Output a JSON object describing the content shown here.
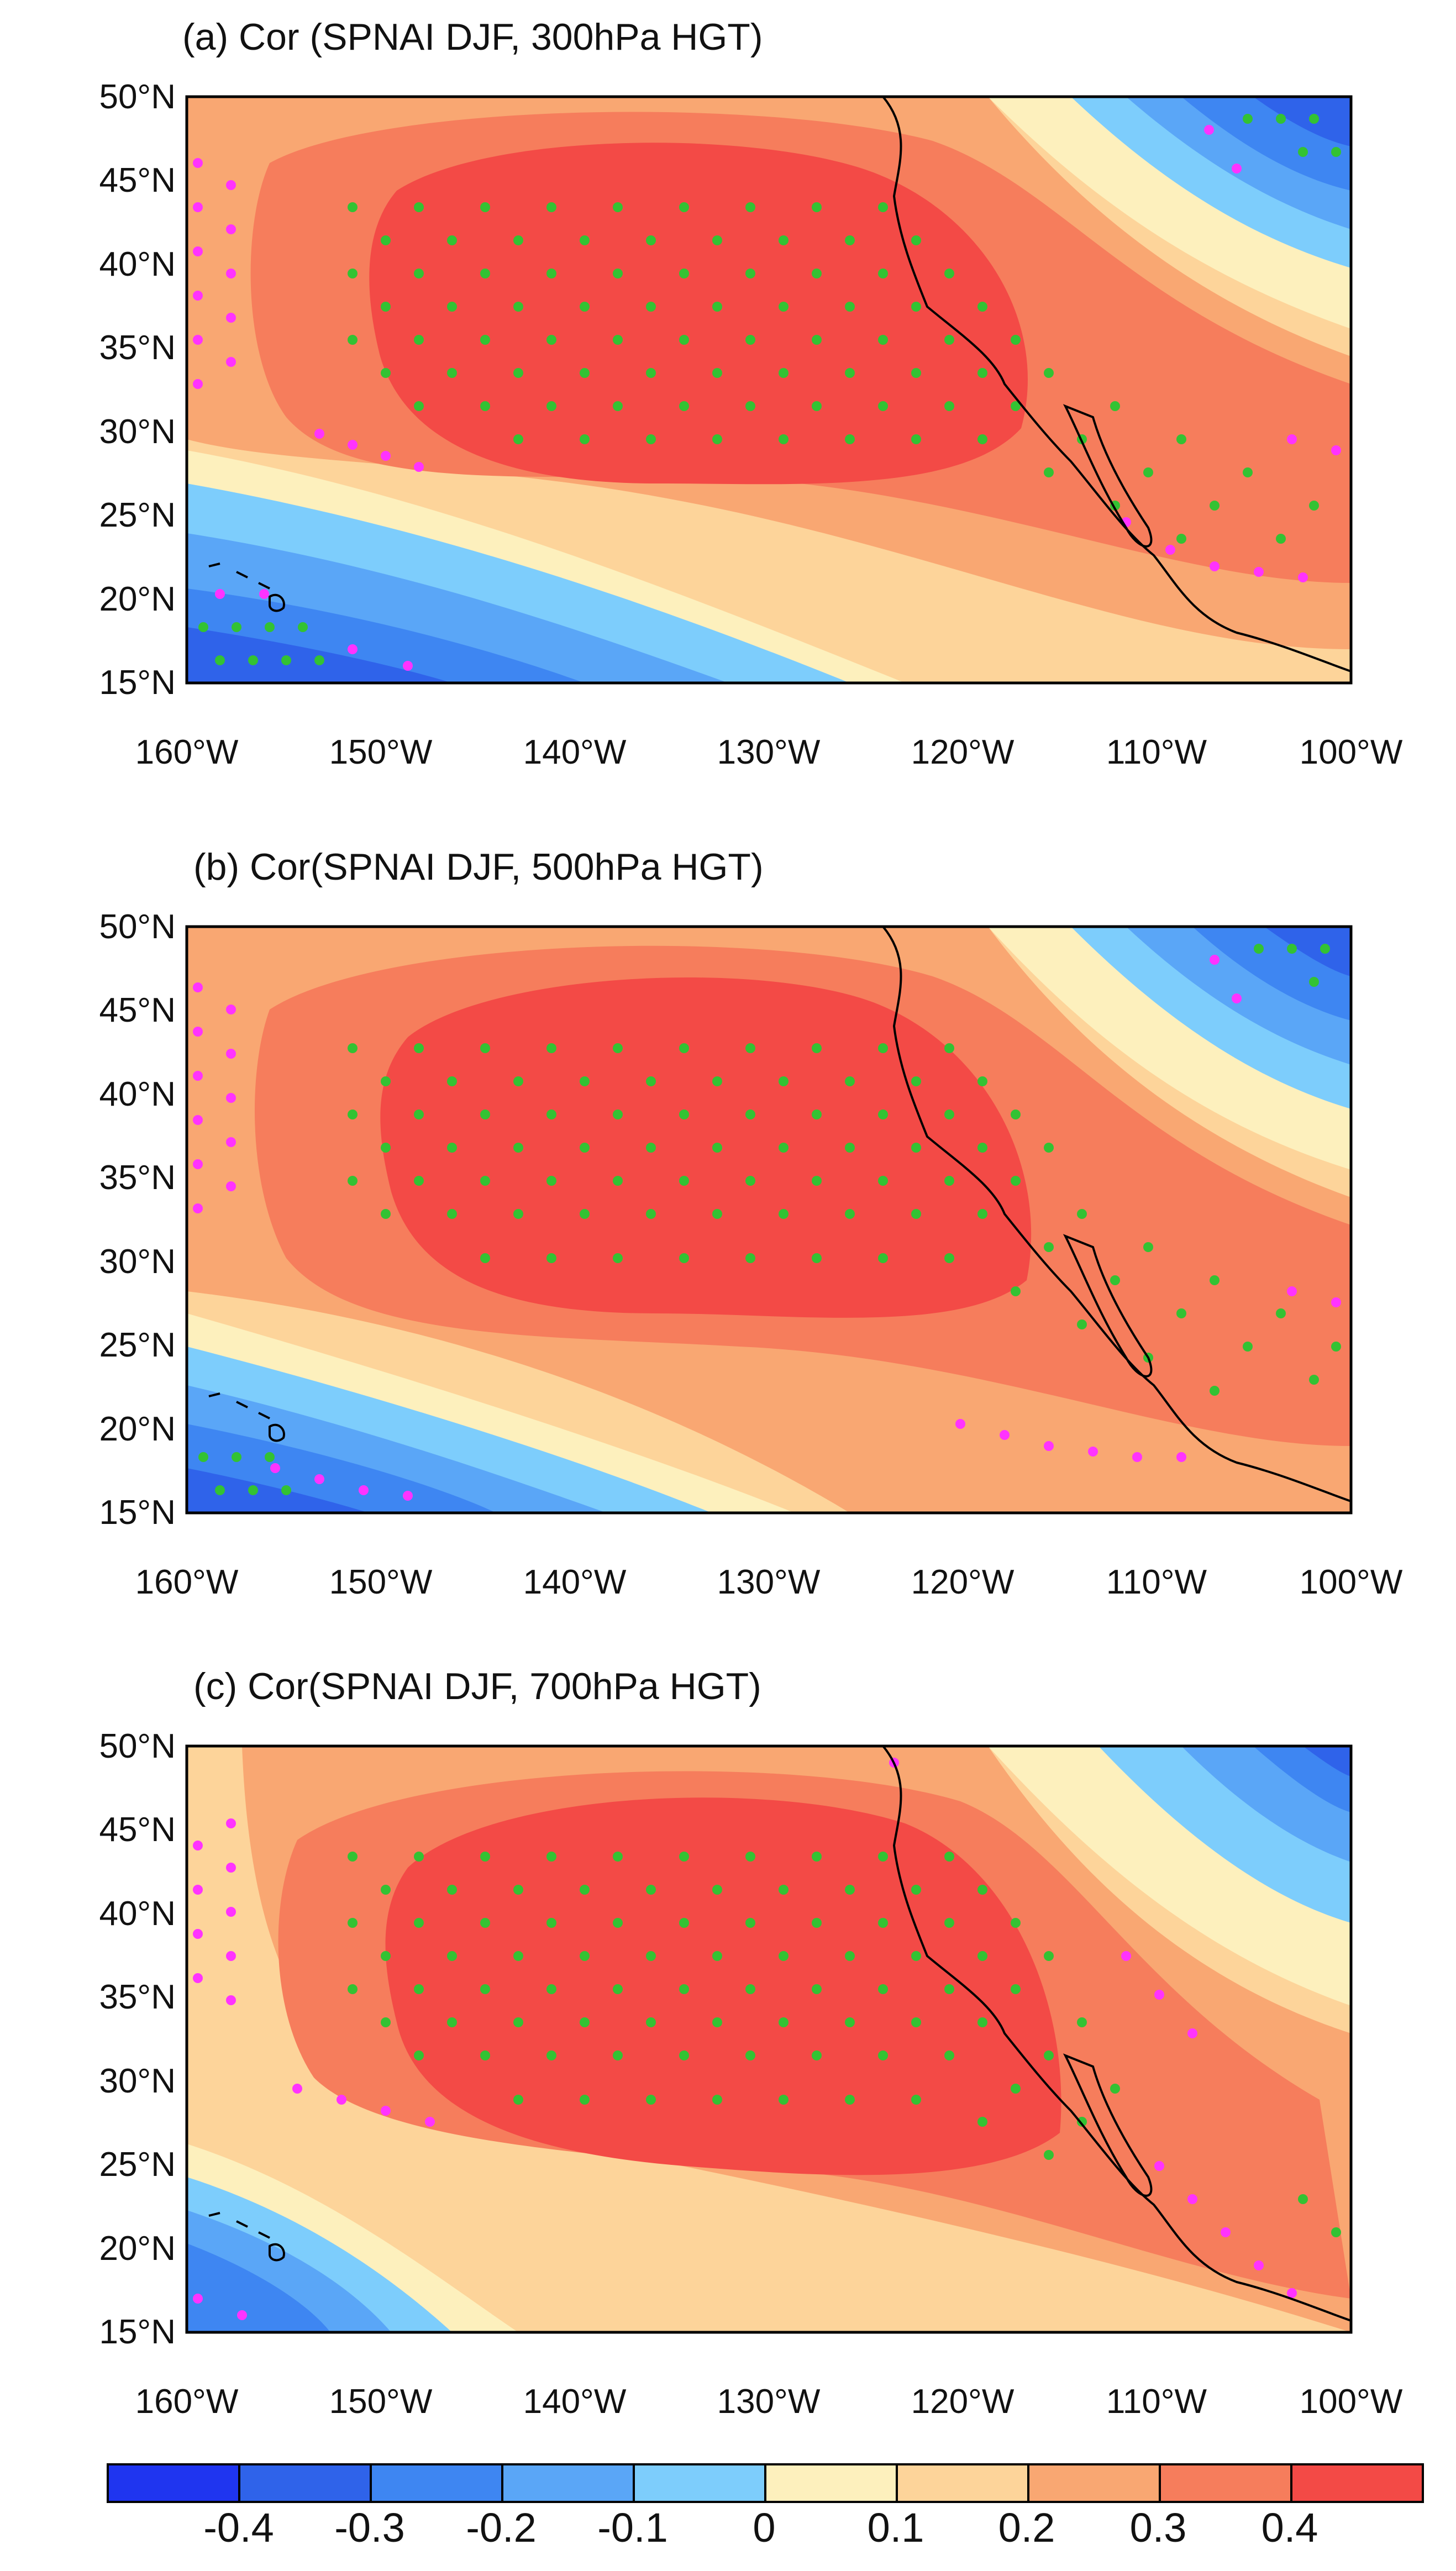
{
  "panels": [
    {
      "id": "a",
      "title": "(a) Cor (SPNAI DJF, 300hPa HGT)"
    },
    {
      "id": "b",
      "title": "(b) Cor(SPNAI DJF, 500hPa HGT)"
    },
    {
      "id": "c",
      "title": "(c) Cor(SPNAI DJF, 700hPa HGT)"
    }
  ],
  "axes": {
    "lat_ticks": [
      "50°N",
      "45°N",
      "40°N",
      "35°N",
      "30°N",
      "25°N",
      "20°N",
      "15°N"
    ],
    "lon_ticks": [
      "160°W",
      "150°W",
      "140°W",
      "130°W",
      "120°W",
      "110°W",
      "100°W"
    ],
    "lat_range": [
      15,
      50
    ],
    "lon_range": [
      -160,
      -100
    ]
  },
  "colorbar": {
    "labels": [
      "-0.4",
      "-0.3",
      "-0.2",
      "-0.1",
      "0",
      "0.1",
      "0.2",
      "0.3",
      "0.4"
    ],
    "levels": [
      -0.5,
      -0.4,
      -0.3,
      -0.2,
      -0.1,
      0,
      0.1,
      0.2,
      0.3,
      0.4,
      0.5
    ],
    "colors": [
      "#1f35f0",
      "#2f63ea",
      "#3e86f2",
      "#5aa6f7",
      "#7dcdfc",
      "#fdf0bd",
      "#fdd49a",
      "#f9a772",
      "#f67d5c",
      "#f34a46"
    ]
  },
  "legend": {
    "stipple_green": "#33c233",
    "stipple_magenta": "#ff33ff",
    "coast_color": "#000000"
  }
}
